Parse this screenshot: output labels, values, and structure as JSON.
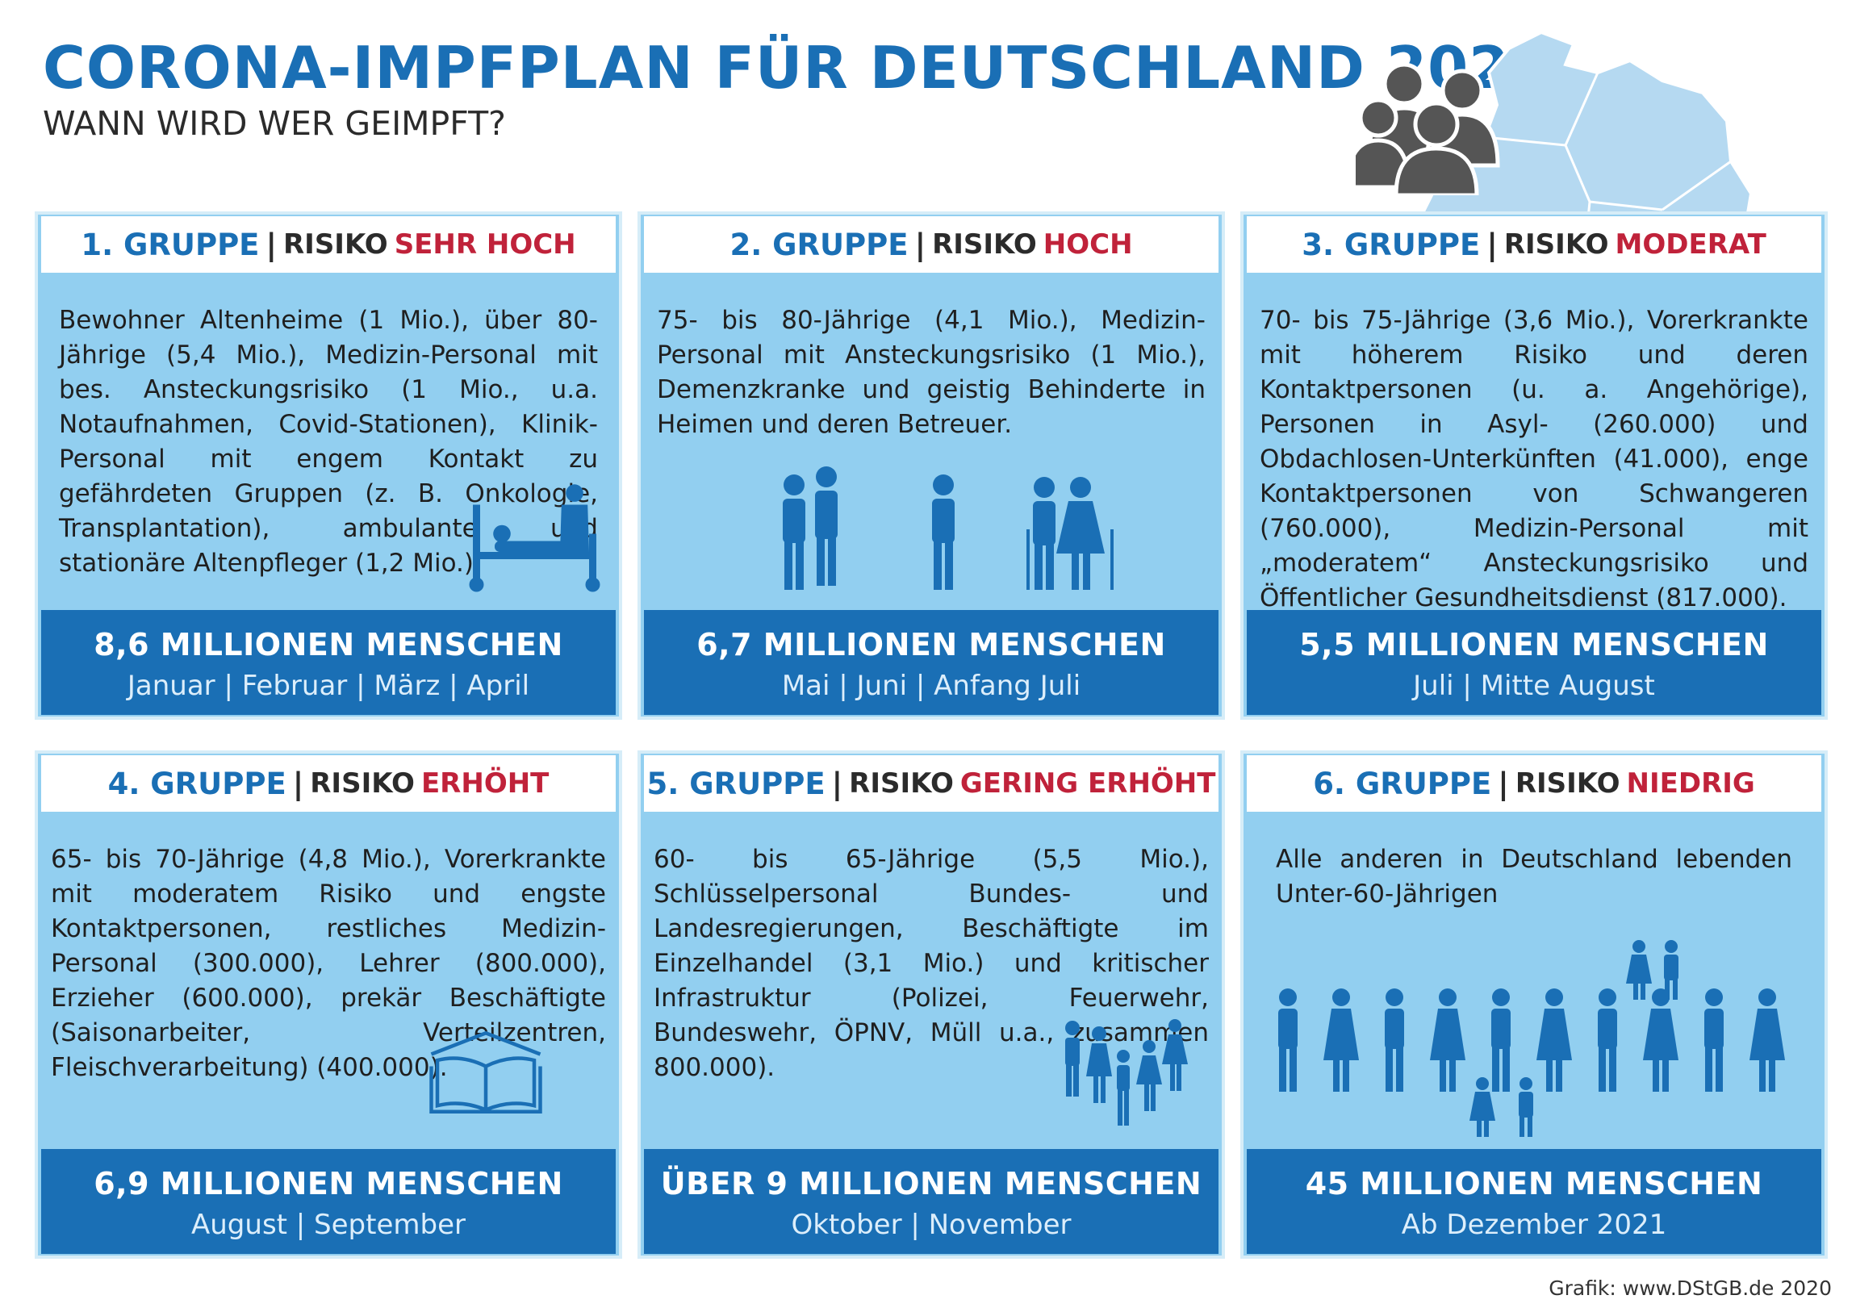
{
  "header": {
    "title": "CORONA-IMPFPLAN FÜR DEUTSCHLAND 2021",
    "subtitle": "WANN WIRD WER GEIMPFT?"
  },
  "colors": {
    "accent": "#1a6fb5",
    "card_bg": "#92cff0",
    "risk_red": "#c0223a"
  },
  "groups": [
    {
      "label": "1. GRUPPE",
      "sep": "|",
      "risk_label": "RISIKO",
      "risk_level": "SEHR HOCH",
      "text": "Bewohner Altenheime (1 Mio.), über 80-Jährige (5,4 Mio.), Medizin-Personal mit bes. Ansteckungsrisiko (1 Mio., u.a. Notaufnahmen, Covid-Stationen), Klinik-Personal mit engem Kontakt zu gefährdeten Gruppen (z. B. Onkologie, Transplantation), ambulante und stationäre Altenpfleger (1,2 Mio.).",
      "people": "8,6 MILLIONEN MENSCHEN",
      "months": "Januar | Februar | März | April",
      "icon": "hospital-bed-icon"
    },
    {
      "label": "2. GRUPPE",
      "sep": "|",
      "risk_label": "RISIKO",
      "risk_level": "HOCH",
      "text": "75- bis 80-Jährige (4,1 Mio.), Medizin-Personal mit Ansteckungsrisiko (1 Mio.), Demenzkranke und geistig Behinderte in Heimen und deren Betreuer.",
      "people": "6,7 MILLIONEN MENSCHEN",
      "months": "Mai | Juni | Anfang Juli",
      "icon": "caregivers-elderly-icon"
    },
    {
      "label": "3. GRUPPE",
      "sep": "|",
      "risk_label": "RISIKO",
      "risk_level": "MODERAT",
      "text": "70- bis 75-Jährige (3,6 Mio.), Vorerkrankte mit höherem Risiko und deren Kontaktpersonen (u. a. Angehörige), Personen in Asyl- (260.000) und Obdachlosen-Unterkünften (41.000), enge Kontaktpersonen von Schwangeren (760.000), Medizin-Personal mit „moderatem“ Ansteckungsrisiko und Öffentlicher Gesundheitsdienst (817.000).",
      "people": "5,5 MILLIONEN MENSCHEN",
      "months": "Juli | Mitte August",
      "icon": ""
    },
    {
      "label": "4. GRUPPE",
      "sep": "|",
      "risk_label": "RISIKO",
      "risk_level": "ERHÖHT",
      "text": "65- bis 70-Jährige (4,8 Mio.), Vorerkrankte mit moderatem Risiko und engste Kontaktpersonen, restliches Medizin-Personal (300.000), Lehrer (800.000), Erzieher (600.000), prekär Beschäftigte (Saisonarbeiter, Verteilzentren, Fleischverarbeitung) (400.000).",
      "people": "6,9 MILLIONEN MENSCHEN",
      "months": "August | September",
      "icon": "book-icon"
    },
    {
      "label": "5. GRUPPE",
      "sep": "|",
      "risk_label": "RISIKO",
      "risk_level": "GERING ERHÖHT",
      "text": "60- bis 65-Jährige (5,5 Mio.), Schlüsselpersonal Bundes- und Landesregierungen, Beschäftigte im Einzelhandel (3,1 Mio.) und kritischer Infrastruktur (Polizei, Feuerwehr, Bundeswehr, ÖPNV, Müll u.a., zusammen 800.000).",
      "people": "ÜBER 9 MILLIONEN MENSCHEN",
      "months": "Oktober | November",
      "icon": "family-group-icon"
    },
    {
      "label": "6. GRUPPE",
      "sep": "|",
      "risk_label": "RISIKO",
      "risk_level": "NIEDRIG",
      "text": "Alle anderen in Deutschland lebenden Unter-60-Jährigen",
      "people": "45 MILLIONEN MENSCHEN",
      "months": "Ab Dezember 2021",
      "icon": "population-icon"
    }
  ],
  "credit": "Grafik: www.DStGB.de 2020"
}
